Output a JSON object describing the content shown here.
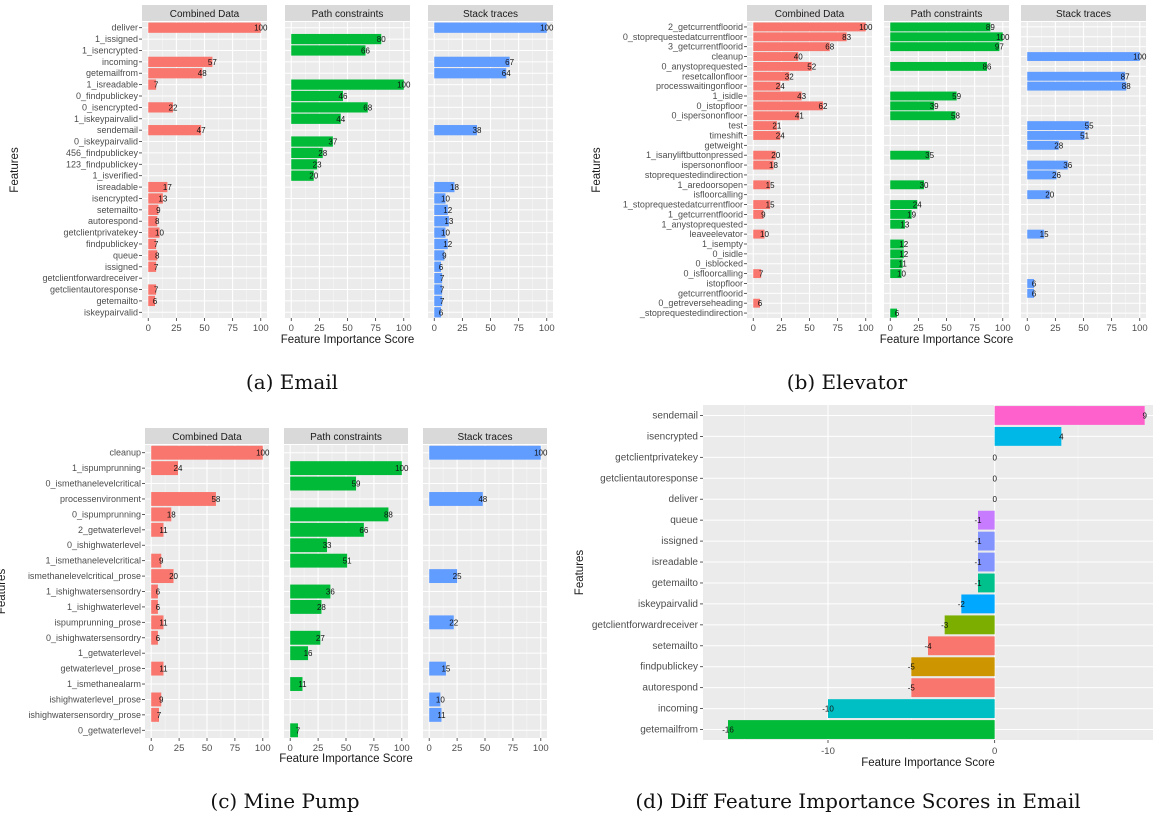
{
  "figure": {
    "captions": [
      "(a) Email",
      "(b) Elevator",
      "(c) Mine Pump",
      "(d) Diff Feature Importance Scores in Email"
    ]
  },
  "chart_data": [
    {
      "type": "bar",
      "orientation": "horizontal",
      "facets": [
        "Combined Data",
        "Path constraints",
        "Stack traces"
      ],
      "xlabel": "Feature Importance Score",
      "ylabel": "Features",
      "xlim": [
        0,
        100
      ],
      "xticks": [
        0,
        25,
        50,
        75,
        100
      ],
      "colors": [
        "#f8766d",
        "#00ba38",
        "#619cff"
      ],
      "grid": true,
      "categories": [
        "deliver",
        "1_issigned",
        "1_isencrypted",
        "incoming",
        "getemailfrom",
        "1_isreadable",
        "0_findpublickey",
        "0_isencrypted",
        "1_iskeypairvalid",
        "sendemail",
        "0_iskeypairvalid",
        "456_findpublickey",
        "123_findpublickey",
        "1_isverified",
        "isreadable",
        "isencrypted",
        "setemailto",
        "autorespond",
        "getclientprivatekey",
        "findpublickey",
        "queue",
        "issigned",
        "getclientforwardreceiver",
        "getclientautoresponse",
        "getemailto",
        "iskeypairvalid"
      ],
      "series": [
        {
          "name": "Combined Data",
          "values": [
            100,
            null,
            null,
            57,
            48,
            7,
            null,
            22,
            null,
            47,
            null,
            null,
            null,
            null,
            17,
            13,
            9,
            8,
            10,
            7,
            8,
            7,
            null,
            7,
            6,
            null
          ]
        },
        {
          "name": "Path constraints",
          "values": [
            null,
            80,
            66,
            null,
            null,
            100,
            46,
            68,
            44,
            null,
            37,
            28,
            23,
            20,
            null,
            null,
            null,
            null,
            null,
            null,
            null,
            null,
            null,
            null,
            null,
            null
          ]
        },
        {
          "name": "Stack traces",
          "values": [
            100,
            null,
            null,
            67,
            64,
            null,
            null,
            null,
            null,
            38,
            null,
            null,
            null,
            null,
            18,
            10,
            12,
            13,
            10,
            12,
            9,
            6,
            7,
            7,
            7,
            6
          ]
        }
      ]
    },
    {
      "type": "bar",
      "orientation": "horizontal",
      "facets": [
        "Combined Data",
        "Path constraints",
        "Stack traces"
      ],
      "xlabel": "Feature Importance Score",
      "ylabel": "Features",
      "xlim": [
        0,
        100
      ],
      "xticks": [
        0,
        25,
        50,
        75,
        100
      ],
      "colors": [
        "#f8766d",
        "#00ba38",
        "#619cff"
      ],
      "grid": true,
      "categories": [
        "2_getcurrentfloorid",
        "0_stoprequestedatcurrentfloor",
        "3_getcurrentfloorid",
        "cleanup",
        "0_anystoprequested",
        "resetcallonfloor",
        "processwaitingonfloor",
        "1_isidle",
        "0_istopfloor",
        "0_ispersononfloor",
        "test",
        "timeshift",
        "getweight",
        "1_isanyliftbuttonpressed",
        "ispersononfloor",
        "stoprequestedindirection",
        "1_aredoorsopen",
        "isfloorcalling",
        "1_stoprequestedatcurrentfloor",
        "1_getcurrentfloorid",
        "1_anystoprequested",
        "leaveelevator",
        "1_isempty",
        "0_isidle",
        "0_isblocked",
        "0_isfloorcalling",
        "istopfloor",
        "getcurrentfloorid",
        "0_getreverseheading",
        "_stoprequestedindirection"
      ],
      "series": [
        {
          "name": "Combined Data",
          "values": [
            100,
            83,
            68,
            40,
            52,
            32,
            24,
            43,
            62,
            41,
            21,
            24,
            null,
            20,
            18,
            null,
            15,
            null,
            15,
            9,
            null,
            10,
            null,
            null,
            null,
            7,
            null,
            null,
            6,
            null
          ]
        },
        {
          "name": "Path constraints",
          "values": [
            89,
            100,
            97,
            null,
            86,
            null,
            null,
            59,
            39,
            58,
            null,
            null,
            null,
            35,
            null,
            null,
            30,
            null,
            24,
            19,
            13,
            null,
            12,
            12,
            11,
            10,
            null,
            null,
            null,
            6
          ]
        },
        {
          "name": "Stack traces",
          "values": [
            null,
            null,
            null,
            100,
            null,
            87,
            88,
            null,
            null,
            null,
            55,
            51,
            28,
            null,
            36,
            26,
            null,
            20,
            null,
            null,
            null,
            15,
            null,
            null,
            null,
            null,
            6,
            6,
            null,
            null
          ]
        }
      ]
    },
    {
      "type": "bar",
      "orientation": "horizontal",
      "facets": [
        "Combined Data",
        "Path constraints",
        "Stack traces"
      ],
      "xlabel": "Feature Importance Score",
      "ylabel": "Features",
      "xlim": [
        0,
        100
      ],
      "xticks": [
        0,
        25,
        50,
        75,
        100
      ],
      "colors": [
        "#f8766d",
        "#00ba38",
        "#619cff"
      ],
      "grid": true,
      "categories": [
        "cleanup",
        "1_ispumprunning",
        "0_ismethanelevelcritical",
        "processenvironment",
        "0_ispumprunning",
        "2_getwaterlevel",
        "0_ishighwaterlevel",
        "1_ismethanelevelcritical",
        "ismethanelevelcritical_prose",
        "1_ishighwatersensordry",
        "1_ishighwaterlevel",
        "ispumprunning_prose",
        "0_ishighwatersensordry",
        "1_getwaterlevel",
        "getwaterlevel_prose",
        "1_ismethanealarm",
        "ishighwaterlevel_prose",
        "ishighwatersensordry_prose",
        "0_getwaterlevel"
      ],
      "series": [
        {
          "name": "Combined Data",
          "values": [
            100,
            24,
            null,
            58,
            18,
            11,
            null,
            9,
            20,
            6,
            6,
            11,
            6,
            null,
            11,
            null,
            9,
            7,
            null
          ]
        },
        {
          "name": "Path constraints",
          "values": [
            null,
            100,
            59,
            null,
            88,
            66,
            33,
            51,
            null,
            36,
            28,
            null,
            27,
            16,
            null,
            11,
            null,
            null,
            7
          ]
        },
        {
          "name": "Stack traces",
          "values": [
            100,
            null,
            null,
            48,
            null,
            null,
            null,
            null,
            25,
            null,
            null,
            22,
            null,
            null,
            15,
            null,
            10,
            11,
            null
          ]
        }
      ]
    },
    {
      "type": "bar",
      "orientation": "horizontal",
      "xlabel": "Feature Importance Score",
      "ylabel": "Features",
      "xlim": [
        -17.5,
        9.5
      ],
      "xticks": [
        -10,
        0
      ],
      "grid": true,
      "categories": [
        "sendemail",
        "isencrypted",
        "getclientprivatekey",
        "getclientautoresponse",
        "deliver",
        "queue",
        "issigned",
        "isreadable",
        "getemailto",
        "iskeypairvalid",
        "getclientforwardreceiver",
        "setemailto",
        "findpublickey",
        "autorespond",
        "incoming",
        "getemailfrom"
      ],
      "values": [
        9,
        4,
        0,
        0,
        0,
        -1,
        -1,
        -1,
        -1,
        -2,
        -3,
        -4,
        -5,
        -5,
        -10,
        -16
      ],
      "colors": [
        "#ff61cc",
        "#00b8e7",
        "#ff61cc",
        "#ff61cc",
        "#ff61cc",
        "#c77cff",
        "#8494ff",
        "#8494ff",
        "#00c08b",
        "#00a9ff",
        "#7cae00",
        "#f8766d",
        "#cd9600",
        "#f8766d",
        "#00bfc4",
        "#00ba38"
      ]
    }
  ]
}
